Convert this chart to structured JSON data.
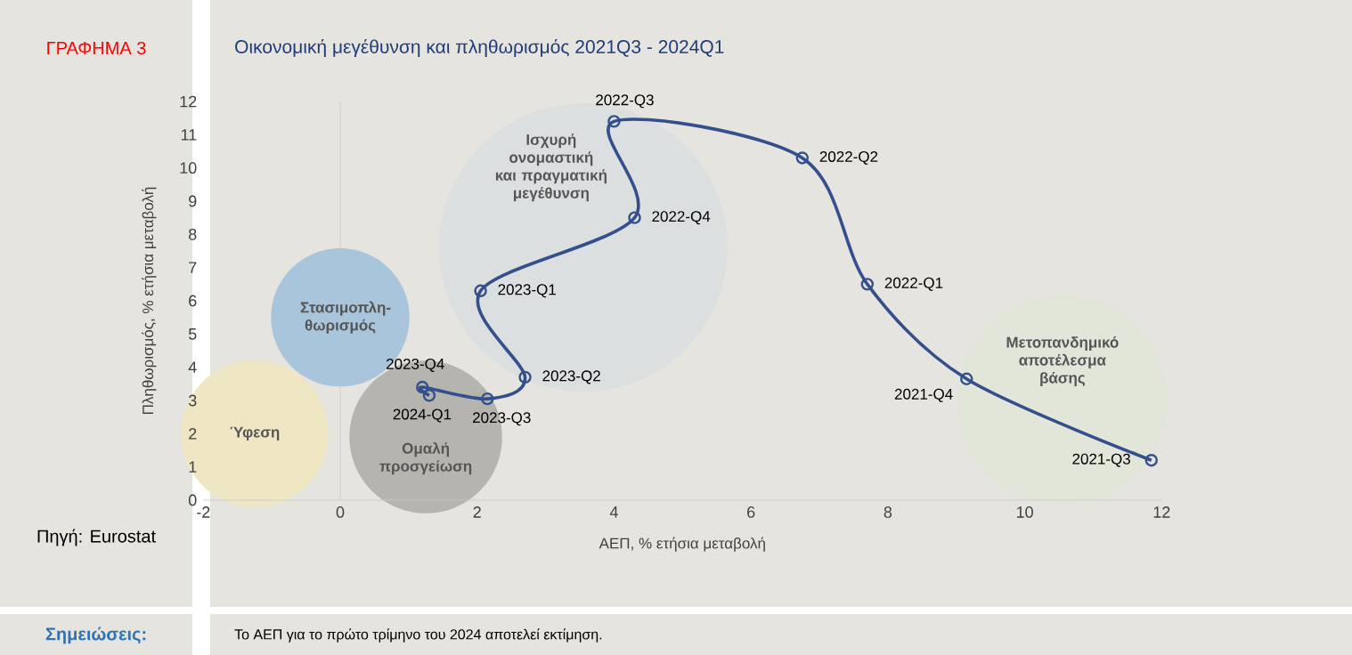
{
  "chart_data": {
    "type": "line",
    "title": "Οικονομική μεγέθυνση και πληθωρισμός 2021Q3  - 2024Q1",
    "xlabel": "ΑΕΠ, % ετήσια μεταβολή",
    "ylabel": "Πληθωρισμός, % ετήσια μεταβολή",
    "xlim": [
      -2,
      12
    ],
    "ylim": [
      0,
      12
    ],
    "xticks": [
      -2,
      0,
      2,
      4,
      6,
      8,
      10,
      12
    ],
    "yticks": [
      0,
      1,
      2,
      3,
      4,
      5,
      6,
      7,
      8,
      9,
      10,
      11,
      12
    ],
    "marker": "circle",
    "ref_lines": [
      {
        "axis": "x",
        "value": 0,
        "color": "#c8c8c8"
      }
    ],
    "annotations": [
      "ΓΡΑΦΗΜΑ 3",
      "Πηγή: Eurostat",
      "Σημειώσεις:",
      "Το ΑΕΠ για το πρώτο τρίμηνο του 2024 αποτελεί εκτίμηση.",
      {
        "text": "2021-Q3",
        "x": 11.85,
        "y": 1.2
      },
      {
        "text": "2021-Q4",
        "x": 9.15,
        "y": 3.65
      },
      {
        "text": "2022-Q1",
        "x": 7.7,
        "y": 6.5
      },
      {
        "text": "2022-Q2",
        "x": 6.75,
        "y": 10.3
      },
      {
        "text": "2022-Q3",
        "x": 4,
        "y": 11.4
      },
      {
        "text": "2022-Q4",
        "x": 4.3,
        "y": 8.5
      },
      {
        "text": "2023-Q1",
        "x": 2.05,
        "y": 6.3
      },
      {
        "text": "2023-Q2",
        "x": 2.7,
        "y": 3.7
      },
      {
        "text": "2023-Q3",
        "x": 2.15,
        "y": 3.05
      },
      {
        "text": "2023-Q4",
        "x": 1.2,
        "y": 3.4
      },
      {
        "text": "2024-Q1",
        "x": 1.3,
        "y": 3.15
      }
    ],
    "series": [
      {
        "type": "bubble",
        "x": [
          -1.25,
          0,
          1.25,
          3.55,
          10.55
        ],
        "values": [
          2,
          5.5,
          1.9,
          7.6,
          3
        ],
        "sizes": [
          0.26,
          0.23,
          0.28,
          1,
          0.53
        ],
        "colors": [
          "#efe6c4",
          "#a9c5dc",
          "#b5b4ae",
          "#dcdfe0",
          "#e1e6d9"
        ],
        "value_labels": [
          "Ύφεση",
          "Στασιμοπλη-θωρισμός",
          "Ομαλή προσγείωση",
          "Ισχυρή ονομαστική και πραγματική μεγέθυνση",
          "Μετοπανδημικό αποτέλεσμα βάσης"
        ]
      },
      {
        "color": "#34508c",
        "x": [
          11.85,
          9.15,
          7.7,
          6.75,
          4,
          4.3,
          2.05,
          2.7,
          2.15,
          1.2,
          1.3
        ],
        "values": [
          1.2,
          3.65,
          6.5,
          10.3,
          11.4,
          8.5,
          6.3,
          3.7,
          3.05,
          3.4,
          3.15
        ]
      }
    ]
  }
}
